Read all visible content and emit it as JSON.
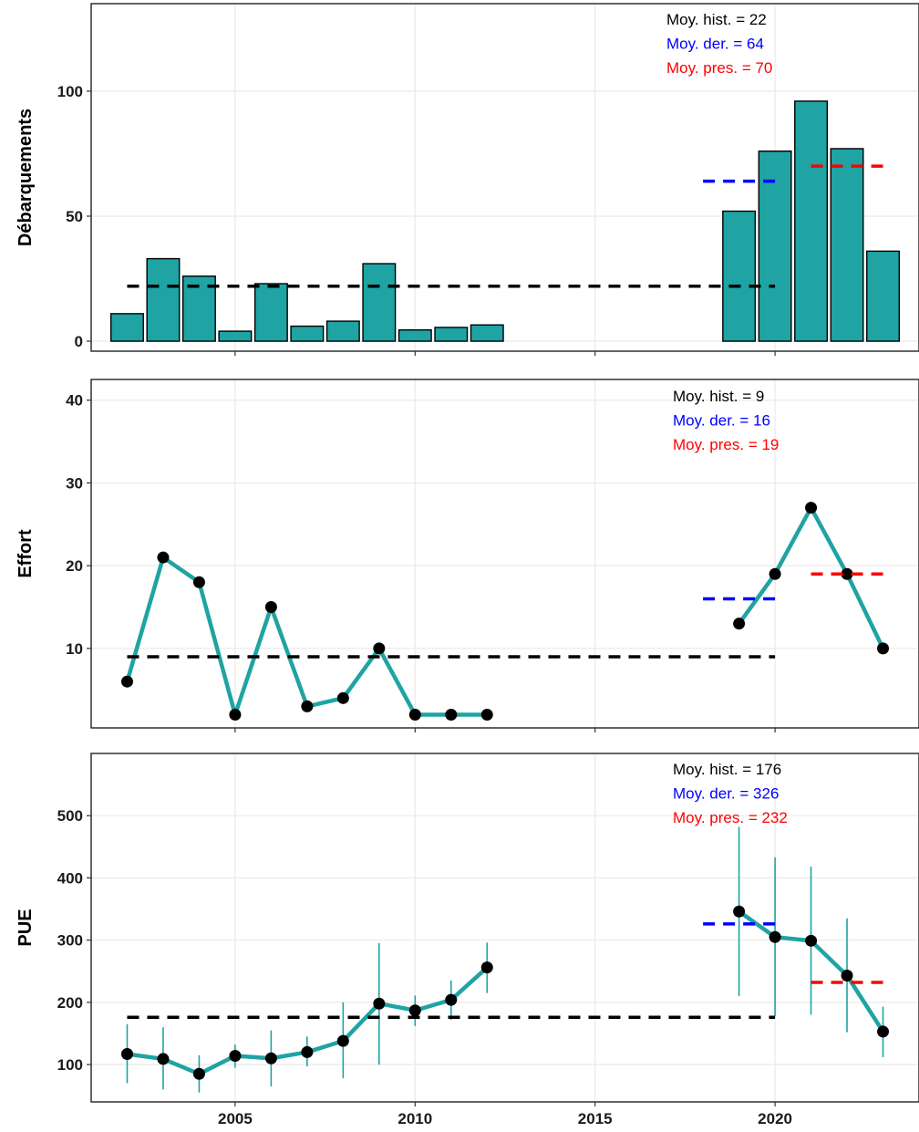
{
  "colors": {
    "bar_fill": "#1fa3a3",
    "line": "#1fa3a3",
    "point": "#000000",
    "hist": "#000000",
    "recent": "#0000ff",
    "present": "#ff0000"
  },
  "x_axis": {
    "range": [
      2001.0,
      2024.0
    ],
    "ticks": [
      2005,
      2010,
      2015,
      2020
    ],
    "tick_labels": [
      "2005",
      "2010",
      "2015",
      "2020"
    ]
  },
  "chart_data": [
    {
      "type": "bar",
      "ylabel": "Débarquements",
      "ylim": [
        -4,
        135
      ],
      "yticks": [
        0,
        50,
        100
      ],
      "x": [
        2002,
        2003,
        2004,
        2005,
        2006,
        2007,
        2008,
        2009,
        2010,
        2011,
        2012,
        2019,
        2020,
        2021,
        2022,
        2023
      ],
      "values": [
        11,
        33,
        26,
        4,
        23,
        6,
        8,
        31,
        4.5,
        5.5,
        6.5,
        52,
        76,
        96,
        77,
        36
      ],
      "means": {
        "hist": {
          "value": 22,
          "x_range": [
            2002,
            2020
          ]
        },
        "recent": {
          "value": 64,
          "x_range": [
            2018,
            2020
          ]
        },
        "present": {
          "value": 70,
          "x_range": [
            2021,
            2023
          ]
        }
      },
      "annotations": {
        "hist": {
          "label": "Moy. hist. =",
          "value": "22"
        },
        "recent": {
          "label": "Moy. der. =",
          "value": "64"
        },
        "present": {
          "label": "Moy. pres. =",
          "value": "70"
        }
      }
    },
    {
      "type": "line",
      "ylabel": "Effort",
      "ylim": [
        0.4,
        42.5
      ],
      "yticks": [
        10,
        20,
        30,
        40
      ],
      "segments": [
        {
          "x": [
            2002,
            2003,
            2004,
            2005,
            2006,
            2007,
            2008,
            2009,
            2010,
            2011,
            2012
          ],
          "y": [
            6,
            21,
            18,
            2,
            15,
            3,
            4,
            10,
            2,
            2,
            2
          ]
        },
        {
          "x": [
            2019,
            2020,
            2021,
            2022,
            2023
          ],
          "y": [
            13,
            19,
            27,
            19,
            10
          ]
        }
      ],
      "means": {
        "hist": {
          "value": 9,
          "x_range": [
            2002,
            2020
          ]
        },
        "recent": {
          "value": 16,
          "x_range": [
            2018,
            2020
          ]
        },
        "present": {
          "value": 19,
          "x_range": [
            2021,
            2023
          ]
        }
      },
      "annotations": {
        "hist": {
          "label": "Moy. hist. =",
          "value": "9"
        },
        "recent": {
          "label": "Moy. der. =",
          "value": "16"
        },
        "present": {
          "label": "Moy. pres. =",
          "value": "19"
        }
      }
    },
    {
      "type": "line",
      "ylabel": "PUE",
      "ylim": [
        40,
        600
      ],
      "yticks": [
        100,
        200,
        300,
        400,
        500
      ],
      "segments": [
        {
          "x": [
            2002,
            2003,
            2004,
            2005,
            2006,
            2007,
            2008,
            2009,
            2010,
            2011,
            2012
          ],
          "y": [
            117,
            109,
            85,
            114,
            110,
            120,
            138,
            198,
            187,
            204,
            256
          ]
        },
        {
          "x": [
            2019,
            2020,
            2021,
            2022,
            2023
          ],
          "y": [
            346,
            305,
            299,
            243,
            153
          ]
        }
      ],
      "error_bars": {
        "x": [
          2002,
          2003,
          2004,
          2005,
          2006,
          2007,
          2008,
          2009,
          2010,
          2011,
          2012,
          2019,
          2020,
          2021,
          2022,
          2023
        ],
        "lower": [
          70,
          60,
          55,
          95,
          65,
          97,
          78,
          100,
          162,
          172,
          215,
          210,
          178,
          180,
          152,
          112
        ],
        "upper": [
          165,
          160,
          115,
          132,
          155,
          145,
          200,
          295,
          211,
          235,
          296,
          482,
          433,
          418,
          335,
          193
        ]
      },
      "means": {
        "hist": {
          "value": 176,
          "x_range": [
            2002,
            2020
          ]
        },
        "recent": {
          "value": 326,
          "x_range": [
            2018,
            2020
          ]
        },
        "present": {
          "value": 232,
          "x_range": [
            2021,
            2023
          ]
        }
      },
      "annotations": {
        "hist": {
          "label": "Moy. hist. =",
          "value": "176"
        },
        "recent": {
          "label": "Moy. der. =",
          "value": "326"
        },
        "present": {
          "label": "Moy. pres. =",
          "value": "232"
        }
      }
    }
  ]
}
